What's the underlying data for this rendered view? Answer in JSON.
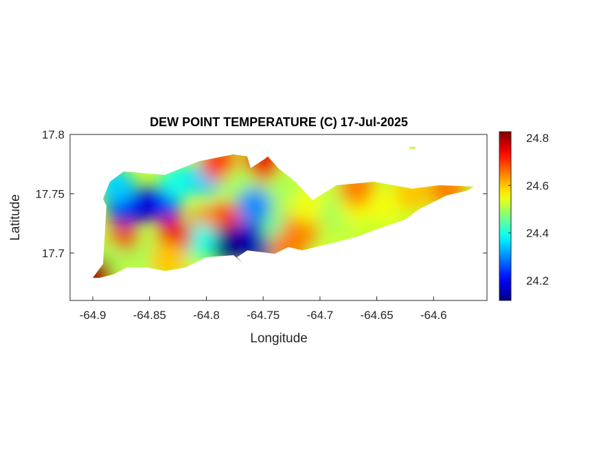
{
  "chart_data": {
    "type": "field",
    "title": "DEW POINT TEMPERATURE (C) 17-Jul-2025",
    "x_label": "Longitude",
    "y_label": "Latitude",
    "xlim": [
      -64.92,
      -64.553
    ],
    "ylim": [
      17.66,
      17.8
    ],
    "xticks": [
      -64.9,
      -64.85,
      -64.8,
      -64.75,
      -64.7,
      -64.65,
      -64.6
    ],
    "yticks": [
      17.7,
      17.75,
      17.8
    ],
    "colormap": "jet",
    "clim": [
      24.116,
      24.826
    ],
    "colorbar_ticks": [
      24.2,
      24.4,
      24.6,
      24.8
    ],
    "x": [
      -64.858,
      -64.873,
      -64.837,
      -64.879,
      -64.825,
      -64.801,
      -64.789,
      -64.752,
      -64.77,
      -64.734,
      -64.782,
      -64.801,
      -64.758,
      -64.764,
      -64.752,
      -64.782,
      -64.807,
      -64.828,
      -64.873,
      -64.852,
      -64.834,
      -64.885,
      -64.898,
      -64.734,
      -64.716,
      -64.71,
      -64.685,
      -64.667,
      -64.667,
      -64.643,
      -64.618,
      -64.588,
      -64.728
    ],
    "y": [
      17.74,
      17.74,
      17.743,
      17.757,
      17.76,
      17.763,
      17.775,
      17.775,
      17.757,
      17.751,
      17.728,
      17.723,
      17.74,
      17.711,
      17.708,
      17.708,
      17.711,
      17.714,
      17.708,
      17.697,
      17.694,
      17.694,
      17.682,
      17.717,
      17.723,
      17.74,
      17.734,
      17.74,
      17.754,
      17.74,
      17.751,
      17.754,
      17.705
    ],
    "values": [
      24.15,
      24.2,
      24.2,
      24.35,
      24.4,
      24.35,
      24.7,
      24.75,
      24.5,
      24.5,
      24.7,
      24.65,
      24.3,
      24.2,
      24.15,
      24.12,
      24.4,
      24.75,
      24.75,
      24.5,
      24.6,
      24.5,
      24.8,
      24.45,
      24.65,
      24.55,
      24.5,
      24.55,
      24.65,
      24.55,
      24.6,
      24.65,
      24.65
    ]
  }
}
